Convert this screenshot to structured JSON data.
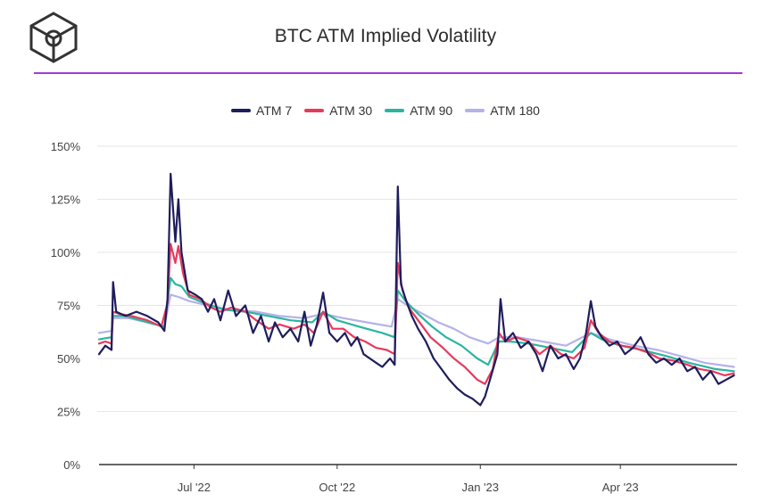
{
  "header": {
    "title": "BTC ATM Implied Volatility",
    "logo": "cube-logo-icon"
  },
  "colors": {
    "accent_rule": "#a63ad6",
    "atm7": "#1f1d5c",
    "atm30": "#e63a5b",
    "atm90": "#2bb5a0",
    "atm180": "#b5b2e8",
    "grid": "#e6e6e6"
  },
  "chart_data": {
    "type": "line",
    "title": "BTC ATM Implied Volatility",
    "xlabel": "",
    "ylabel": "",
    "ylim": [
      0,
      150
    ],
    "xlim": [
      "2022-05-01",
      "2023-06-15"
    ],
    "y_ticks": [
      0,
      25,
      50,
      75,
      100,
      125,
      150
    ],
    "y_tick_labels": [
      "0%",
      "25%",
      "50%",
      "75%",
      "100%",
      "125%",
      "150%"
    ],
    "x_ticks": [
      "2022-07-01",
      "2022-10-01",
      "2023-01-01",
      "2023-04-01"
    ],
    "x_tick_labels": [
      "Jul '22",
      "Oct '22",
      "Jan '23",
      "Apr '23"
    ],
    "legend": {
      "position": "top-center"
    },
    "series": [
      {
        "name": "ATM 7",
        "color": "#1f1d5c",
        "points": [
          [
            "2022-05-01",
            52
          ],
          [
            "2022-05-05",
            56
          ],
          [
            "2022-05-09",
            54
          ],
          [
            "2022-05-10",
            86
          ],
          [
            "2022-05-12",
            72
          ],
          [
            "2022-05-18",
            70
          ],
          [
            "2022-05-25",
            72
          ],
          [
            "2022-06-01",
            70
          ],
          [
            "2022-06-08",
            67
          ],
          [
            "2022-06-12",
            63
          ],
          [
            "2022-06-14",
            78
          ],
          [
            "2022-06-16",
            137
          ],
          [
            "2022-06-19",
            105
          ],
          [
            "2022-06-21",
            125
          ],
          [
            "2022-06-23",
            100
          ],
          [
            "2022-06-27",
            82
          ],
          [
            "2022-07-02",
            80
          ],
          [
            "2022-07-06",
            78
          ],
          [
            "2022-07-10",
            72
          ],
          [
            "2022-07-14",
            78
          ],
          [
            "2022-07-18",
            68
          ],
          [
            "2022-07-23",
            82
          ],
          [
            "2022-07-28",
            70
          ],
          [
            "2022-08-03",
            75
          ],
          [
            "2022-08-08",
            62
          ],
          [
            "2022-08-13",
            70
          ],
          [
            "2022-08-18",
            58
          ],
          [
            "2022-08-22",
            67
          ],
          [
            "2022-08-27",
            60
          ],
          [
            "2022-09-01",
            64
          ],
          [
            "2022-09-06",
            58
          ],
          [
            "2022-09-10",
            72
          ],
          [
            "2022-09-14",
            56
          ],
          [
            "2022-09-18",
            66
          ],
          [
            "2022-09-22",
            81
          ],
          [
            "2022-09-26",
            62
          ],
          [
            "2022-10-01",
            58
          ],
          [
            "2022-10-06",
            62
          ],
          [
            "2022-10-10",
            56
          ],
          [
            "2022-10-14",
            60
          ],
          [
            "2022-10-18",
            52
          ],
          [
            "2022-10-22",
            50
          ],
          [
            "2022-10-26",
            48
          ],
          [
            "2022-10-30",
            46
          ],
          [
            "2022-11-04",
            50
          ],
          [
            "2022-11-07",
            47
          ],
          [
            "2022-11-09",
            131
          ],
          [
            "2022-11-11",
            85
          ],
          [
            "2022-11-14",
            78
          ],
          [
            "2022-11-18",
            70
          ],
          [
            "2022-11-22",
            64
          ],
          [
            "2022-11-27",
            58
          ],
          [
            "2022-12-02",
            50
          ],
          [
            "2022-12-07",
            45
          ],
          [
            "2022-12-12",
            40
          ],
          [
            "2022-12-17",
            36
          ],
          [
            "2022-12-22",
            33
          ],
          [
            "2022-12-27",
            31
          ],
          [
            "2023-01-01",
            28
          ],
          [
            "2023-01-04",
            32
          ],
          [
            "2023-01-08",
            42
          ],
          [
            "2023-01-12",
            52
          ],
          [
            "2023-01-14",
            78
          ],
          [
            "2023-01-17",
            58
          ],
          [
            "2023-01-22",
            62
          ],
          [
            "2023-01-27",
            55
          ],
          [
            "2023-02-01",
            58
          ],
          [
            "2023-02-06",
            52
          ],
          [
            "2023-02-10",
            44
          ],
          [
            "2023-02-15",
            56
          ],
          [
            "2023-02-20",
            50
          ],
          [
            "2023-02-25",
            52
          ],
          [
            "2023-03-02",
            45
          ],
          [
            "2023-03-06",
            50
          ],
          [
            "2023-03-10",
            62
          ],
          [
            "2023-03-13",
            77
          ],
          [
            "2023-03-16",
            65
          ],
          [
            "2023-03-20",
            60
          ],
          [
            "2023-03-25",
            56
          ],
          [
            "2023-03-30",
            58
          ],
          [
            "2023-04-04",
            52
          ],
          [
            "2023-04-09",
            55
          ],
          [
            "2023-04-14",
            60
          ],
          [
            "2023-04-19",
            52
          ],
          [
            "2023-04-24",
            48
          ],
          [
            "2023-04-29",
            50
          ],
          [
            "2023-05-04",
            47
          ],
          [
            "2023-05-09",
            50
          ],
          [
            "2023-05-14",
            44
          ],
          [
            "2023-05-19",
            46
          ],
          [
            "2023-05-24",
            40
          ],
          [
            "2023-05-29",
            44
          ],
          [
            "2023-06-03",
            38
          ],
          [
            "2023-06-08",
            40
          ],
          [
            "2023-06-13",
            42
          ]
        ]
      },
      {
        "name": "ATM 30",
        "color": "#e63a5b",
        "points": [
          [
            "2022-05-01",
            57
          ],
          [
            "2022-05-05",
            58
          ],
          [
            "2022-05-09",
            57
          ],
          [
            "2022-05-10",
            72
          ],
          [
            "2022-05-14",
            71
          ],
          [
            "2022-05-22",
            70
          ],
          [
            "2022-06-01",
            68
          ],
          [
            "2022-06-10",
            65
          ],
          [
            "2022-06-14",
            76
          ],
          [
            "2022-06-16",
            104
          ],
          [
            "2022-06-19",
            95
          ],
          [
            "2022-06-21",
            103
          ],
          [
            "2022-06-24",
            90
          ],
          [
            "2022-06-28",
            80
          ],
          [
            "2022-07-05",
            78
          ],
          [
            "2022-07-12",
            74
          ],
          [
            "2022-07-18",
            72
          ],
          [
            "2022-07-25",
            74
          ],
          [
            "2022-08-03",
            72
          ],
          [
            "2022-08-10",
            68
          ],
          [
            "2022-08-18",
            64
          ],
          [
            "2022-08-25",
            66
          ],
          [
            "2022-09-03",
            64
          ],
          [
            "2022-09-10",
            66
          ],
          [
            "2022-09-16",
            62
          ],
          [
            "2022-09-22",
            72
          ],
          [
            "2022-09-28",
            64
          ],
          [
            "2022-10-05",
            64
          ],
          [
            "2022-10-12",
            60
          ],
          [
            "2022-10-19",
            58
          ],
          [
            "2022-10-26",
            55
          ],
          [
            "2022-11-02",
            54
          ],
          [
            "2022-11-07",
            52
          ],
          [
            "2022-11-09",
            95
          ],
          [
            "2022-11-12",
            82
          ],
          [
            "2022-11-16",
            74
          ],
          [
            "2022-11-22",
            68
          ],
          [
            "2022-11-30",
            60
          ],
          [
            "2022-12-08",
            55
          ],
          [
            "2022-12-15",
            50
          ],
          [
            "2022-12-22",
            46
          ],
          [
            "2022-12-30",
            40
          ],
          [
            "2023-01-04",
            38
          ],
          [
            "2023-01-09",
            45
          ],
          [
            "2023-01-13",
            62
          ],
          [
            "2023-01-17",
            58
          ],
          [
            "2023-01-24",
            60
          ],
          [
            "2023-02-01",
            58
          ],
          [
            "2023-02-08",
            52
          ],
          [
            "2023-02-15",
            56
          ],
          [
            "2023-02-22",
            52
          ],
          [
            "2023-03-02",
            50
          ],
          [
            "2023-03-09",
            55
          ],
          [
            "2023-03-13",
            68
          ],
          [
            "2023-03-18",
            62
          ],
          [
            "2023-03-25",
            58
          ],
          [
            "2023-04-02",
            56
          ],
          [
            "2023-04-10",
            55
          ],
          [
            "2023-04-18",
            53
          ],
          [
            "2023-04-26",
            50
          ],
          [
            "2023-05-05",
            49
          ],
          [
            "2023-05-14",
            47
          ],
          [
            "2023-05-22",
            45
          ],
          [
            "2023-05-30",
            44
          ],
          [
            "2023-06-07",
            42
          ],
          [
            "2023-06-13",
            43
          ]
        ]
      },
      {
        "name": "ATM 90",
        "color": "#2bb5a0",
        "points": [
          [
            "2022-05-01",
            59
          ],
          [
            "2022-05-09",
            60
          ],
          [
            "2022-05-10",
            70
          ],
          [
            "2022-05-18",
            70
          ],
          [
            "2022-06-01",
            67
          ],
          [
            "2022-06-12",
            65
          ],
          [
            "2022-06-16",
            88
          ],
          [
            "2022-06-19",
            85
          ],
          [
            "2022-06-23",
            84
          ],
          [
            "2022-06-28",
            79
          ],
          [
            "2022-07-08",
            76
          ],
          [
            "2022-07-20",
            73
          ],
          [
            "2022-08-03",
            72
          ],
          [
            "2022-08-18",
            70
          ],
          [
            "2022-09-01",
            68
          ],
          [
            "2022-09-15",
            67
          ],
          [
            "2022-09-22",
            72
          ],
          [
            "2022-10-01",
            68
          ],
          [
            "2022-10-15",
            65
          ],
          [
            "2022-10-30",
            62
          ],
          [
            "2022-11-07",
            60
          ],
          [
            "2022-11-09",
            82
          ],
          [
            "2022-11-14",
            77
          ],
          [
            "2022-11-22",
            71
          ],
          [
            "2022-12-01",
            65
          ],
          [
            "2022-12-10",
            60
          ],
          [
            "2022-12-20",
            56
          ],
          [
            "2022-12-30",
            50
          ],
          [
            "2023-01-06",
            47
          ],
          [
            "2023-01-13",
            58
          ],
          [
            "2023-01-20",
            58
          ],
          [
            "2023-02-01",
            57
          ],
          [
            "2023-02-15",
            55
          ],
          [
            "2023-03-01",
            53
          ],
          [
            "2023-03-13",
            62
          ],
          [
            "2023-03-20",
            59
          ],
          [
            "2023-04-01",
            56
          ],
          [
            "2023-04-15",
            54
          ],
          [
            "2023-05-01",
            51
          ],
          [
            "2023-05-15",
            48
          ],
          [
            "2023-06-01",
            45
          ],
          [
            "2023-06-13",
            44
          ]
        ]
      },
      {
        "name": "ATM 180",
        "color": "#b5b2e8",
        "points": [
          [
            "2022-05-01",
            62
          ],
          [
            "2022-05-09",
            63
          ],
          [
            "2022-05-10",
            69
          ],
          [
            "2022-05-20",
            69
          ],
          [
            "2022-06-01",
            67
          ],
          [
            "2022-06-12",
            65
          ],
          [
            "2022-06-16",
            80
          ],
          [
            "2022-06-21",
            79
          ],
          [
            "2022-06-28",
            77
          ],
          [
            "2022-07-10",
            75
          ],
          [
            "2022-07-25",
            73
          ],
          [
            "2022-08-10",
            72
          ],
          [
            "2022-08-25",
            70
          ],
          [
            "2022-09-10",
            69
          ],
          [
            "2022-09-22",
            71
          ],
          [
            "2022-10-05",
            69
          ],
          [
            "2022-10-20",
            67
          ],
          [
            "2022-11-05",
            65
          ],
          [
            "2022-11-09",
            78
          ],
          [
            "2022-11-15",
            75
          ],
          [
            "2022-11-25",
            71
          ],
          [
            "2022-12-05",
            67
          ],
          [
            "2022-12-15",
            64
          ],
          [
            "2022-12-25",
            60
          ],
          [
            "2023-01-06",
            57
          ],
          [
            "2023-01-13",
            60
          ],
          [
            "2023-01-25",
            60
          ],
          [
            "2023-02-10",
            58
          ],
          [
            "2023-02-25",
            56
          ],
          [
            "2023-03-13",
            62
          ],
          [
            "2023-03-25",
            59
          ],
          [
            "2023-04-10",
            56
          ],
          [
            "2023-04-25",
            54
          ],
          [
            "2023-05-10",
            51
          ],
          [
            "2023-05-25",
            48
          ],
          [
            "2023-06-13",
            46
          ]
        ]
      }
    ]
  }
}
